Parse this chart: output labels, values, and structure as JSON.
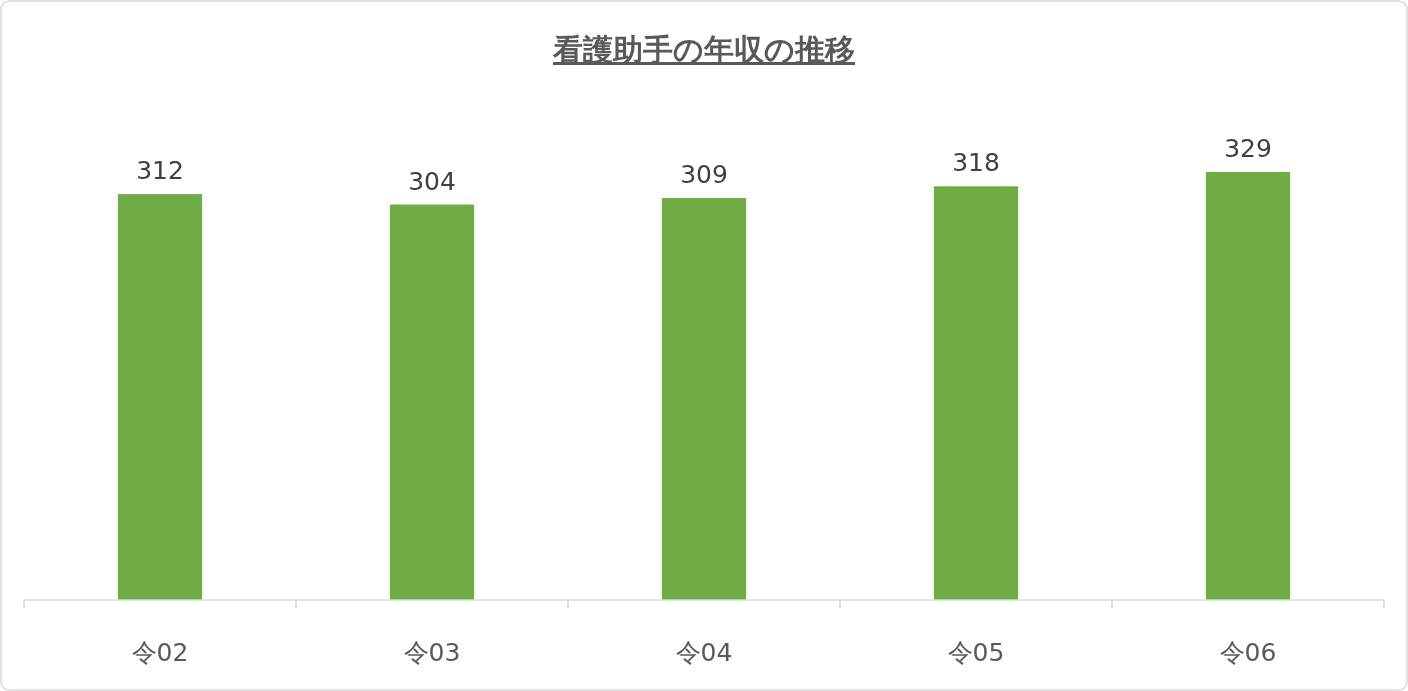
{
  "chart_data": {
    "type": "bar",
    "title": "看護助手の年収の推移",
    "categories": [
      "令02",
      "令03",
      "令04",
      "令05",
      "令06"
    ],
    "values": [
      312,
      304,
      309,
      318,
      329
    ],
    "color": "#70ad47",
    "data_labels": true
  }
}
